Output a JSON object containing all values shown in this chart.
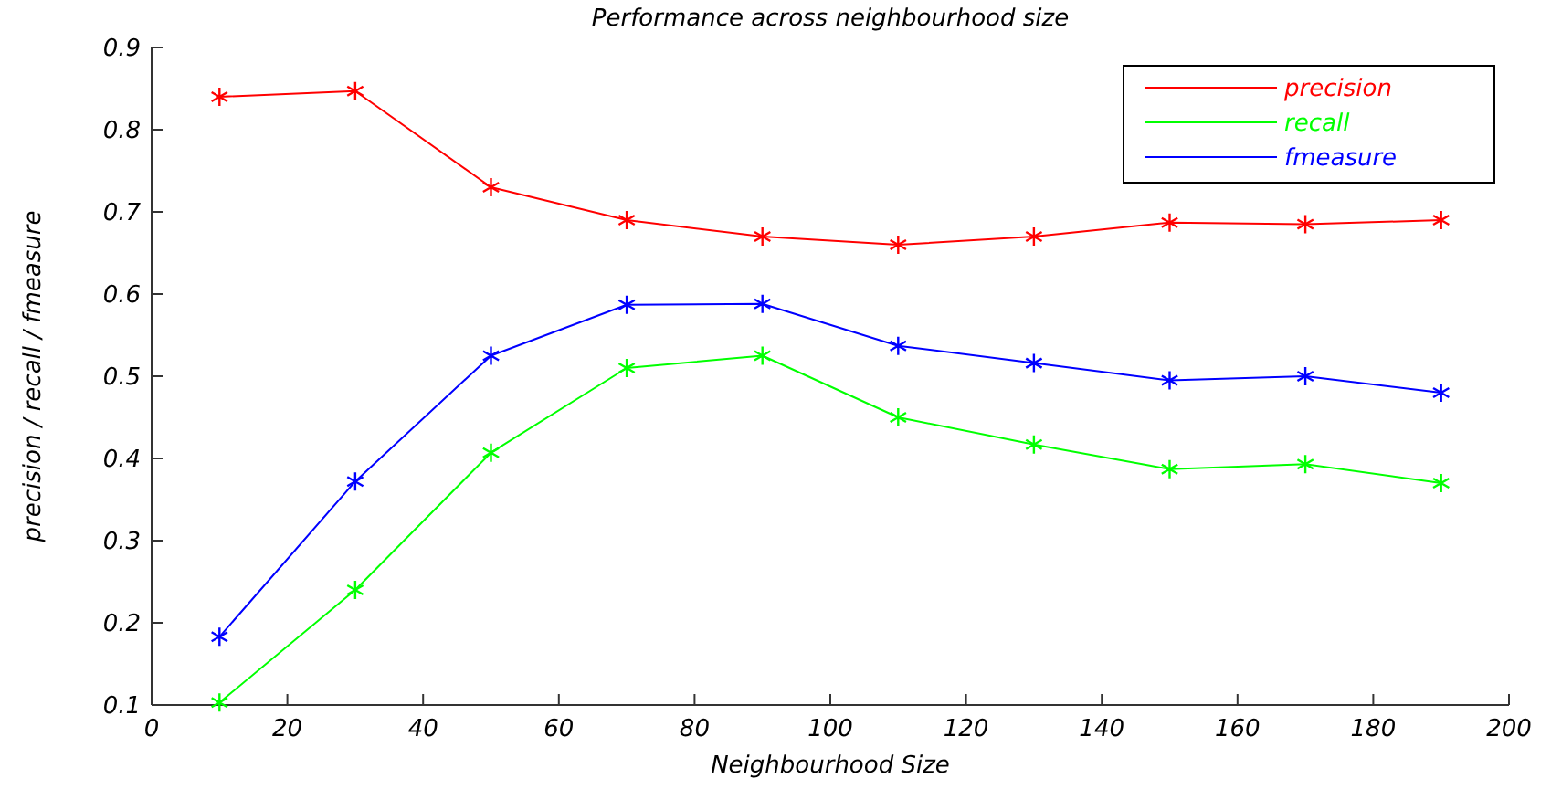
{
  "chart_data": {
    "type": "line",
    "title": "Performance across neighbourhood size",
    "xlabel": "Neighbourhood Size",
    "ylabel": "precision / recall / fmeasure",
    "x": [
      10,
      30,
      50,
      70,
      90,
      110,
      130,
      150,
      170,
      190
    ],
    "series": [
      {
        "name": "precision",
        "color": "#ff0000",
        "values": [
          0.84,
          0.847,
          0.73,
          0.69,
          0.67,
          0.66,
          0.67,
          0.687,
          0.685,
          0.69
        ]
      },
      {
        "name": "recall",
        "color": "#00ff00",
        "values": [
          0.103,
          0.24,
          0.407,
          0.51,
          0.525,
          0.45,
          0.417,
          0.387,
          0.393,
          0.37
        ]
      },
      {
        "name": "fmeasure",
        "color": "#0000ff",
        "values": [
          0.183,
          0.372,
          0.525,
          0.587,
          0.588,
          0.537,
          0.516,
          0.495,
          0.5,
          0.48
        ]
      }
    ],
    "xlim": [
      0,
      200
    ],
    "xticks": [
      0,
      20,
      40,
      60,
      80,
      100,
      120,
      140,
      160,
      180,
      200
    ],
    "ylim": [
      0.1,
      0.9
    ],
    "yticks": [
      0.1,
      0.2,
      0.3,
      0.4,
      0.5,
      0.6,
      0.7,
      0.8,
      0.9
    ],
    "grid": false,
    "legend": "top right",
    "marker": "cross",
    "line_style": "solid"
  }
}
